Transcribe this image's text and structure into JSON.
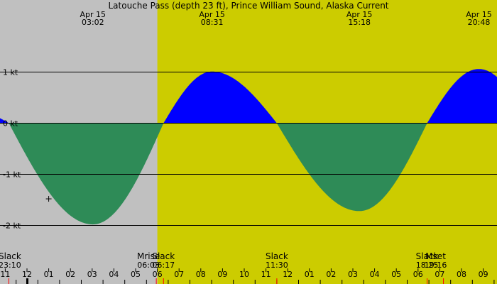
{
  "chart_data": {
    "type": "area",
    "title": "Latouche Pass (depth 23 ft), Prince William Sound, Alaska Current",
    "ylim": [
      -2.4,
      2.4
    ],
    "xlim": [
      -1.5,
      22.0
    ],
    "y_ticks": [
      {
        "value": 1,
        "label": "1 kt"
      },
      {
        "value": 0,
        "label": "0 kt"
      },
      {
        "value": -1,
        "label": "-1 kt"
      },
      {
        "value": -2,
        "label": "-2 kt"
      }
    ],
    "x_tick_labels": [
      {
        "hour": -1,
        "label": "11"
      },
      {
        "hour": 0,
        "label": "12"
      },
      {
        "hour": 1,
        "label": "01"
      },
      {
        "hour": 2,
        "label": "02"
      },
      {
        "hour": 3,
        "label": "03"
      },
      {
        "hour": 4,
        "label": "04"
      },
      {
        "hour": 5,
        "label": "05"
      },
      {
        "hour": 6,
        "label": "06"
      },
      {
        "hour": 7,
        "label": "07"
      },
      {
        "hour": 8,
        "label": "08"
      },
      {
        "hour": 9,
        "label": "09"
      },
      {
        "hour": 10,
        "label": "10"
      },
      {
        "hour": 11,
        "label": "11"
      },
      {
        "hour": 12,
        "label": "12"
      },
      {
        "hour": 13,
        "label": "01"
      },
      {
        "hour": 14,
        "label": "02"
      },
      {
        "hour": 15,
        "label": "03"
      },
      {
        "hour": 16,
        "label": "04"
      },
      {
        "hour": 17,
        "label": "05"
      },
      {
        "hour": 18,
        "label": "06"
      },
      {
        "hour": 19,
        "label": "07"
      },
      {
        "hour": 20,
        "label": "08"
      },
      {
        "hour": 21,
        "label": "09"
      }
    ],
    "extremes": [
      {
        "hour": 3.033,
        "value": -1.98,
        "date": "Apr 15",
        "time": "03:02"
      },
      {
        "hour": 8.517,
        "value": 1.01,
        "date": "Apr 15",
        "time": "08:31"
      },
      {
        "hour": 15.3,
        "value": -1.72,
        "date": "Apr 15",
        "time": "15:18"
      },
      {
        "hour": 20.8,
        "value": 1.06,
        "date": "Apr 15",
        "time": "20:48"
      }
    ],
    "slacks": [
      {
        "hour": -0.833,
        "label": "Slack",
        "time": "23:10"
      },
      {
        "hour": 6.283,
        "label": "Slack",
        "time": "06:17"
      },
      {
        "hour": 11.5,
        "label": "Slack",
        "time": "11:30"
      },
      {
        "hour": 18.417,
        "label": "Slack",
        "time": "18:25"
      }
    ],
    "moon_events": [
      {
        "hour": 6.05,
        "label": "Mrise",
        "time": "06:03"
      },
      {
        "hour": 19.267,
        "label": "Mset",
        "time": "19:16"
      }
    ],
    "daylight": {
      "start_hour": 6.0,
      "end_hour": 22.0
    },
    "colors": {
      "night": "#c0c0c0",
      "day": "#cccc00",
      "flood": "#0000ff",
      "ebb": "#2e8b57",
      "moon_tick": "#ff0000"
    },
    "marker": {
      "hour": 1.0,
      "value": -1.48,
      "symbol": "+"
    }
  }
}
